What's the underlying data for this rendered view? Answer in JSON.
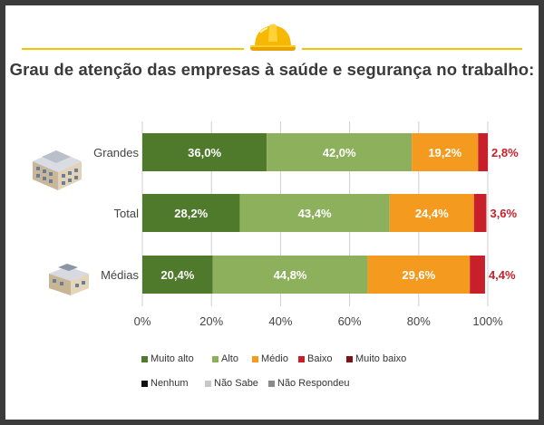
{
  "title": "Grau de atenção das empresas à saúde e segurança no trabalho:",
  "colors": {
    "muito_alto": "#4f7a2b",
    "alto": "#8db05c",
    "medio": "#f39a1f",
    "baixo": "#c8202a",
    "muito_baixo": "#7a1418",
    "nenhum": "#111111",
    "nao_sabe": "#c8c8c8",
    "nao_respondeu": "#8a8a8a",
    "value_label_outside": "#c8202a",
    "rule": "#f3c300"
  },
  "icons": {
    "header": "hard-hat-icon",
    "grandes": "large-building-icon",
    "medias": "small-building-icon"
  },
  "legend": {
    "row1": [
      "Muito alto",
      "Alto",
      "Médio",
      "Baixo",
      "Muito baixo"
    ],
    "row2": [
      "Nenhum",
      "Não Sabe",
      "Não Respondeu"
    ]
  },
  "chart_data": {
    "type": "bar",
    "orientation": "horizontal",
    "stacked": true,
    "categories": [
      "Grandes",
      "Total",
      "Médias"
    ],
    "xlim": [
      0,
      100
    ],
    "xticks": [
      "0%",
      "20%",
      "40%",
      "60%",
      "80%",
      "100%"
    ],
    "series": [
      {
        "name": "Muito alto",
        "values": [
          36.0,
          28.2,
          20.4
        ],
        "labels": [
          "36,0%",
          "28,2%",
          "20,4%"
        ]
      },
      {
        "name": "Alto",
        "values": [
          42.0,
          43.4,
          44.8
        ],
        "labels": [
          "42,0%",
          "43,4%",
          "44,8%"
        ]
      },
      {
        "name": "Médio",
        "values": [
          19.2,
          24.4,
          29.6
        ],
        "labels": [
          "19,2%",
          "24,4%",
          "29,6%"
        ]
      },
      {
        "name": "Baixo",
        "values": [
          2.8,
          3.6,
          4.4
        ],
        "labels": [
          "2,8%",
          "3,6%",
          "4,4%"
        ]
      },
      {
        "name": "Muito baixo",
        "values": [
          0.0,
          0.0,
          0.0
        ]
      },
      {
        "name": "Nenhum",
        "values": [
          0.0,
          0.0,
          0.0
        ]
      },
      {
        "name": "Não Sabe",
        "values": [
          0.0,
          0.0,
          0.0
        ]
      },
      {
        "name": "Não Respondeu",
        "values": [
          0.0,
          0.0,
          0.0
        ]
      }
    ],
    "grid": true,
    "legend_position": "bottom"
  }
}
